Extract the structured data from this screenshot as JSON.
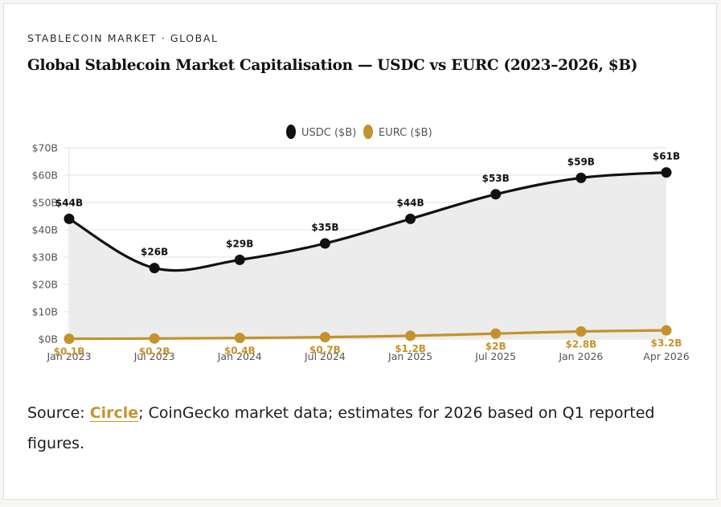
{
  "header": {
    "eyebrow": "STABLECOIN MARKET · GLOBAL",
    "title": "Global Stablecoin Market Capitalisation — USDC vs EURC (2023–2026, $B)"
  },
  "colors": {
    "usdc": "#111111",
    "eurc": "#c4922a",
    "fill": "#ececec",
    "grid": "#e2e2e2",
    "axis_text": "#555555"
  },
  "chart_data": {
    "type": "line",
    "title": "Global Stablecoin Market Capitalisation — USDC vs EURC (2023–2026, $B)",
    "xlabel": "",
    "ylabel": "",
    "categories": [
      "Jan 2023",
      "Jul 2023",
      "Jan 2024",
      "Jul 2024",
      "Jan 2025",
      "Jul 2025",
      "Jan 2026",
      "Apr 2026"
    ],
    "y_ticks": [
      "$0B",
      "$10B",
      "$20B",
      "$30B",
      "$40B",
      "$50B",
      "$60B",
      "$70B"
    ],
    "ylim": [
      0,
      70
    ],
    "grid": true,
    "legend_position": "top-center",
    "series": [
      {
        "name": "USDC ($B)",
        "values": [
          44,
          26,
          29,
          35,
          44,
          53,
          59,
          61
        ],
        "labels": [
          "$44B",
          "$26B",
          "$29B",
          "$35B",
          "$44B",
          "$53B",
          "$59B",
          "$61B"
        ],
        "filled": true
      },
      {
        "name": "EURC ($B)",
        "values": [
          0.1,
          0.2,
          0.4,
          0.7,
          1.2,
          2,
          2.8,
          3.2
        ],
        "labels": [
          "$0.1B",
          "$0.2B",
          "$0.4B",
          "$0.7B",
          "$1.2B",
          "$2B",
          "$2.8B",
          "$3.2B"
        ],
        "filled": false
      }
    ]
  },
  "source": {
    "prefix": "Source: ",
    "link_text": "Circle",
    "suffix": "; CoinGecko market data; estimates for 2026 based on Q1 reported figures."
  }
}
